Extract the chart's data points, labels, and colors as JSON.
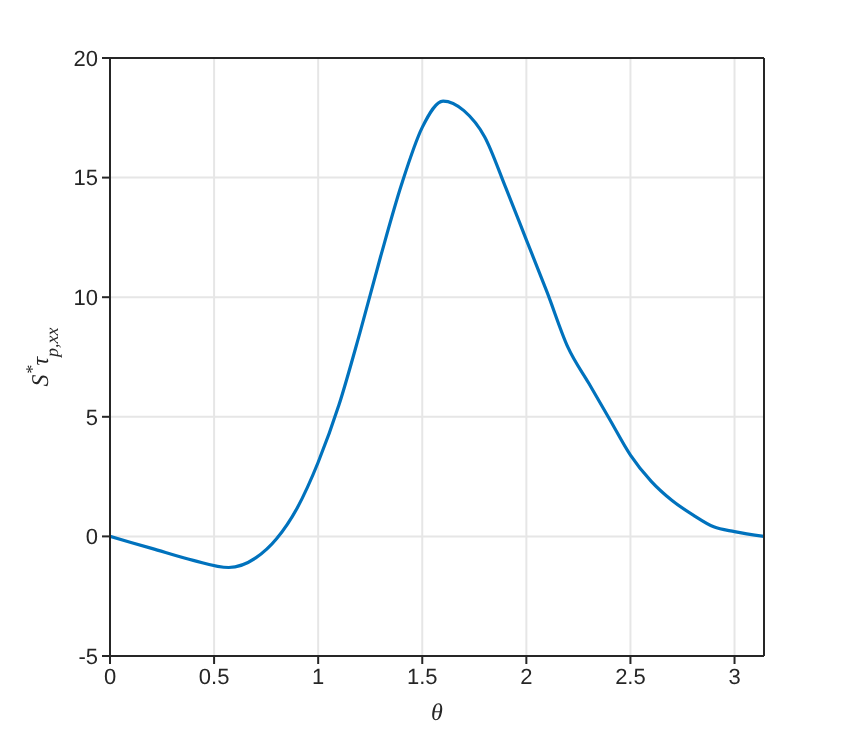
{
  "chart_data": {
    "type": "line",
    "xlabel": "θ",
    "ylabel": "S$^{*}$τ$_{p,xx}$",
    "x": [
      0,
      0.2,
      0.4,
      0.57,
      0.7,
      0.8,
      0.9,
      1.0,
      1.1,
      1.2,
      1.3,
      1.4,
      1.5,
      1.6,
      1.7,
      1.8,
      1.9,
      2.0,
      2.1,
      2.2,
      2.3,
      2.4,
      2.5,
      2.6,
      2.7,
      2.8,
      2.9,
      3.0,
      3.1416
    ],
    "series": [
      {
        "color": "#0072bd",
        "values": [
          0,
          -0.5,
          -1,
          -1.3,
          -0.9,
          -0.1,
          1.2,
          3.1,
          5.5,
          8.5,
          11.7,
          14.7,
          17.1,
          18.2,
          17.8,
          16.7,
          14.6,
          12.4,
          10.2,
          7.9,
          6.4,
          4.9,
          3.4,
          2.3,
          1.5,
          0.9,
          0.4,
          0.2,
          0
        ]
      }
    ],
    "xlim": [
      0,
      3.1416
    ],
    "xticks": [
      0,
      0.5,
      1,
      1.5,
      2,
      2.5,
      3
    ],
    "ylim": [
      -5,
      20
    ],
    "yticks": [
      -5,
      0,
      5,
      10,
      15,
      20
    ],
    "grid": true,
    "marker": "none",
    "line_style": "solid"
  }
}
